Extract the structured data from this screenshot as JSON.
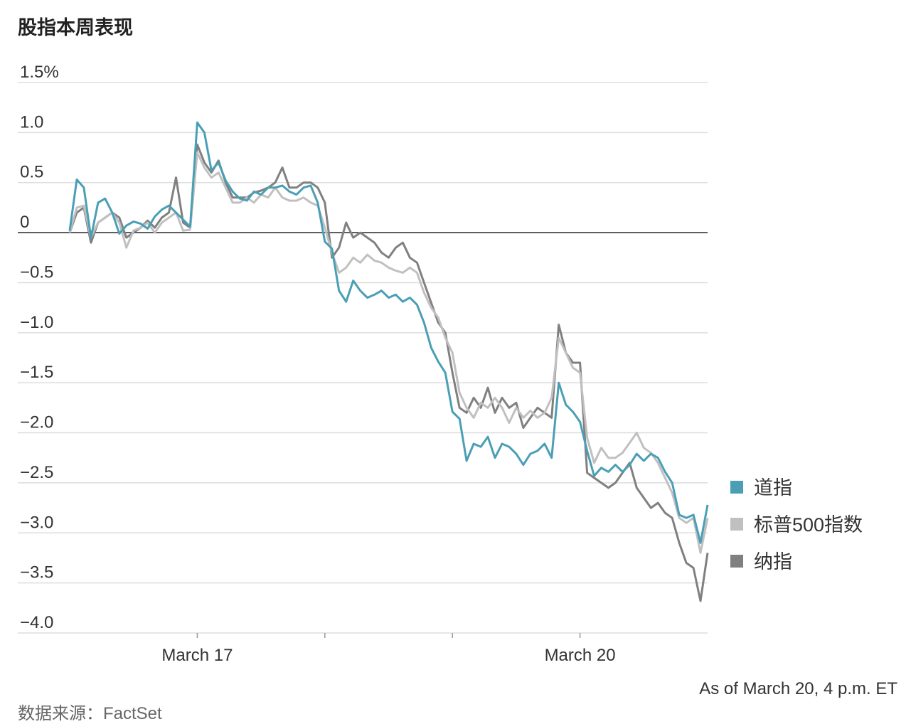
{
  "chart_data": {
    "type": "line",
    "title": "股指本周表现",
    "note": "As of March 20, 4 p.m. ET",
    "source": "数据来源：FactSet",
    "xlim": [
      0,
      90
    ],
    "xticks": [
      {
        "value": 18,
        "label": "March 17"
      },
      {
        "value": 36,
        "label": null
      },
      {
        "value": 54,
        "label": null
      },
      {
        "value": 72,
        "label": "March 20"
      }
    ],
    "ylim": [
      -4,
      1.5
    ],
    "yticks": [
      {
        "value": 1.5,
        "label": "1.5%"
      },
      {
        "value": 1,
        "label": "1.0"
      },
      0.5,
      0,
      {
        "value": -0.5,
        "label": "−0.5"
      },
      {
        "value": -1,
        "label": "−1.0"
      },
      {
        "value": -1.5,
        "label": "−1.5"
      },
      {
        "value": -2,
        "label": "−2.0"
      },
      {
        "value": -2.5,
        "label": "−2.5"
      },
      {
        "value": -3,
        "label": "−3.0"
      },
      {
        "value": -3.5,
        "label": "−3.5"
      },
      {
        "value": -4,
        "label": "−4.0"
      }
    ],
    "grid": true,
    "legend": "right",
    "series": [
      {
        "name": "道指",
        "color": "#4a9fb5",
        "values": [
          0.02,
          0.53,
          0.45,
          -0.05,
          0.3,
          0.34,
          0.2,
          -0.01,
          0.07,
          0.11,
          0.09,
          0.04,
          0.16,
          0.23,
          0.27,
          0.2,
          0.13,
          0.06,
          1.1,
          1.0,
          0.62,
          0.7,
          0.52,
          0.41,
          0.34,
          0.32,
          0.41,
          0.38,
          0.45,
          0.45,
          0.47,
          0.41,
          0.38,
          0.45,
          0.47,
          0.3,
          -0.09,
          -0.16,
          -0.58,
          -0.69,
          -0.48,
          -0.58,
          -0.65,
          -0.62,
          -0.58,
          -0.65,
          -0.62,
          -0.69,
          -0.65,
          -0.72,
          -0.9,
          -1.15,
          -1.29,
          -1.4,
          -1.79,
          -1.86,
          -2.28,
          -2.11,
          -2.14,
          -2.04,
          -2.25,
          -2.11,
          -2.14,
          -2.21,
          -2.32,
          -2.21,
          -2.18,
          -2.11,
          -2.25,
          -1.5,
          -1.72,
          -1.79,
          -1.89,
          -2.18,
          -2.43,
          -2.35,
          -2.39,
          -2.32,
          -2.39,
          -2.32,
          -2.21,
          -2.28,
          -2.21,
          -2.25,
          -2.39,
          -2.5,
          -2.82,
          -2.85,
          -2.82,
          -3.1,
          -2.72
        ]
      },
      {
        "name": "标普500指数",
        "color": "#c0c0c0",
        "values": [
          0,
          0.25,
          0.27,
          -0.05,
          0.1,
          0.15,
          0.2,
          0.1,
          -0.15,
          0.02,
          0.05,
          0.1,
          0.0,
          0.1,
          0.15,
          0.2,
          0.02,
          0.03,
          0.8,
          0.65,
          0.55,
          0.6,
          0.45,
          0.3,
          0.3,
          0.35,
          0.3,
          0.38,
          0.35,
          0.45,
          0.35,
          0.32,
          0.32,
          0.35,
          0.3,
          0.27,
          0.05,
          -0.2,
          -0.4,
          -0.35,
          -0.25,
          -0.3,
          -0.22,
          -0.28,
          -0.3,
          -0.35,
          -0.38,
          -0.4,
          -0.35,
          -0.4,
          -0.6,
          -0.75,
          -0.85,
          -1.05,
          -1.2,
          -1.6,
          -1.75,
          -1.85,
          -1.7,
          -1.75,
          -1.65,
          -1.75,
          -1.9,
          -1.75,
          -1.85,
          -1.78,
          -1.85,
          -1.8,
          -1.65,
          -1.05,
          -1.2,
          -1.35,
          -1.4,
          -2.05,
          -2.3,
          -2.15,
          -2.25,
          -2.25,
          -2.2,
          -2.1,
          -2.0,
          -2.15,
          -2.2,
          -2.3,
          -2.45,
          -2.6,
          -2.85,
          -2.9,
          -2.85,
          -3.2,
          -2.85
        ]
      },
      {
        "name": "纳指",
        "color": "#808080",
        "values": [
          0,
          0.2,
          0.25,
          -0.1,
          0.1,
          0.15,
          0.2,
          0.15,
          -0.05,
          0.0,
          0.05,
          0.12,
          0.05,
          0.15,
          0.2,
          0.55,
          0.1,
          0.05,
          0.88,
          0.7,
          0.6,
          0.72,
          0.5,
          0.35,
          0.35,
          0.35,
          0.4,
          0.42,
          0.45,
          0.5,
          0.65,
          0.45,
          0.45,
          0.5,
          0.5,
          0.45,
          0.3,
          -0.25,
          -0.15,
          0.1,
          -0.05,
          0.0,
          -0.05,
          -0.1,
          -0.2,
          -0.25,
          -0.15,
          -0.1,
          -0.25,
          -0.3,
          -0.5,
          -0.7,
          -0.9,
          -1.0,
          -1.4,
          -1.75,
          -1.8,
          -1.65,
          -1.75,
          -1.55,
          -1.8,
          -1.65,
          -1.75,
          -1.7,
          -1.95,
          -1.85,
          -1.75,
          -1.8,
          -1.85,
          -0.92,
          -1.2,
          -1.3,
          -1.3,
          -2.4,
          -2.45,
          -2.5,
          -2.55,
          -2.5,
          -2.4,
          -2.3,
          -2.55,
          -2.65,
          -2.75,
          -2.7,
          -2.8,
          -2.85,
          -3.1,
          -3.3,
          -3.35,
          -3.68,
          -3.2
        ]
      }
    ]
  }
}
